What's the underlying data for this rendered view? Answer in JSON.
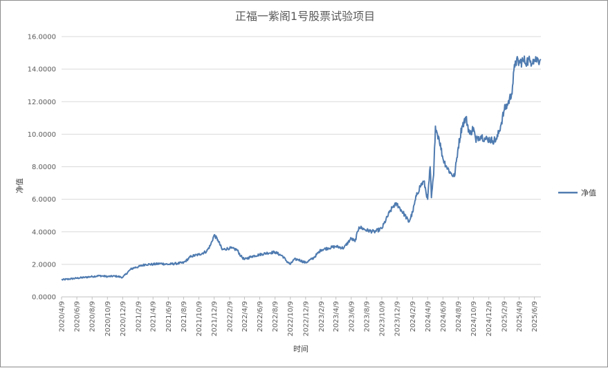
{
  "chart_data": {
    "type": "line",
    "title": "正福一紫阁1号股票试验项目",
    "xlabel": "时间",
    "ylabel": "净值",
    "ylim": [
      0,
      16
    ],
    "yticks": [
      "0.0000",
      "2.0000",
      "4.0000",
      "6.0000",
      "8.0000",
      "10.0000",
      "12.0000",
      "14.0000",
      "16.0000"
    ],
    "xticks": [
      "2020/4/9",
      "2020/6/9",
      "2020/8/9",
      "2020/10/9",
      "2020/12/9",
      "2021/2/9",
      "2021/4/9",
      "2021/6/9",
      "2021/8/9",
      "2021/10/9",
      "2021/12/9",
      "2022/2/9",
      "2022/4/9",
      "2022/6/9",
      "2022/8/9",
      "2022/10/9",
      "2022/12/9",
      "2023/2/9",
      "2023/4/9",
      "2023/6/9",
      "2023/8/9",
      "2023/10/9",
      "2023/12/9",
      "2024/2/9",
      "2024/4/9",
      "2024/6/9",
      "2024/8/9",
      "2024/10/9",
      "2024/12/9",
      "2025/2/9",
      "2025/4/9",
      "2025/6/9"
    ],
    "grid": true,
    "legend_position": "right",
    "series": [
      {
        "name": "净值",
        "color": "#4f7bb0",
        "x": [
          "2020-04-09",
          "2020-05-10",
          "2020-06-09",
          "2020-07-10",
          "2020-08-09",
          "2020-09-09",
          "2020-10-09",
          "2020-11-09",
          "2020-12-09",
          "2021-01-10",
          "2021-01-25",
          "2021-02-09",
          "2021-03-10",
          "2021-04-09",
          "2021-05-10",
          "2021-06-09",
          "2021-07-10",
          "2021-08-09",
          "2021-09-09",
          "2021-10-09",
          "2021-11-09",
          "2021-11-25",
          "2021-12-09",
          "2021-12-24",
          "2022-01-10",
          "2022-02-09",
          "2022-03-10",
          "2022-03-26",
          "2022-04-09",
          "2022-05-10",
          "2022-06-09",
          "2022-07-10",
          "2022-08-09",
          "2022-09-09",
          "2022-09-24",
          "2022-10-09",
          "2022-10-24",
          "2022-11-09",
          "2022-12-09",
          "2023-01-10",
          "2023-02-09",
          "2023-03-10",
          "2023-04-09",
          "2023-05-10",
          "2023-06-09",
          "2023-06-24",
          "2023-07-10",
          "2023-08-09",
          "2023-09-09",
          "2023-10-09",
          "2023-11-09",
          "2023-11-25",
          "2023-12-09",
          "2024-01-10",
          "2024-01-25",
          "2024-02-09",
          "2024-02-24",
          "2024-03-10",
          "2024-03-25",
          "2024-04-09",
          "2024-04-19",
          "2024-04-24",
          "2024-05-03",
          "2024-05-10",
          "2024-05-18",
          "2024-05-24",
          "2024-06-09",
          "2024-06-24",
          "2024-07-10",
          "2024-07-25",
          "2024-08-09",
          "2024-08-24",
          "2024-09-09",
          "2024-09-24",
          "2024-10-09",
          "2024-10-19",
          "2024-10-24",
          "2024-11-09",
          "2024-11-24",
          "2024-12-09",
          "2024-12-24",
          "2025-01-10",
          "2025-01-25",
          "2025-02-09",
          "2025-02-24",
          "2025-03-10",
          "2025-03-25",
          "2025-04-09",
          "2025-04-24",
          "2025-05-10",
          "2025-05-25",
          "2025-06-04",
          "2025-06-09",
          "2025-06-16",
          "2025-06-24",
          "2025-07-01",
          "2025-07-05"
        ],
        "values": [
          1.05,
          1.1,
          1.15,
          1.2,
          1.25,
          1.3,
          1.25,
          1.28,
          1.2,
          1.7,
          1.8,
          1.85,
          2.0,
          2.0,
          2.05,
          2.0,
          2.05,
          2.1,
          2.5,
          2.6,
          2.8,
          3.2,
          3.8,
          3.5,
          2.9,
          3.0,
          2.9,
          2.5,
          2.3,
          2.5,
          2.6,
          2.7,
          2.75,
          2.5,
          2.2,
          2.0,
          2.3,
          2.3,
          2.1,
          2.4,
          2.9,
          3.0,
          3.1,
          3.0,
          3.6,
          3.4,
          4.3,
          4.1,
          4.0,
          4.2,
          5.2,
          5.6,
          5.7,
          5.0,
          4.6,
          5.2,
          6.2,
          6.8,
          7.1,
          6.0,
          8.0,
          6.1,
          7.5,
          10.5,
          10.0,
          9.8,
          8.5,
          8.0,
          7.6,
          7.4,
          9.2,
          10.5,
          11.0,
          10.0,
          10.4,
          9.5,
          9.8,
          9.9,
          9.7,
          9.7,
          9.6,
          9.7,
          10.5,
          11.5,
          11.9,
          12.5,
          14.5,
          14.4,
          14.5,
          14.5,
          14.5,
          14.6,
          14.55,
          14.6,
          14.6,
          14.55,
          14.6
        ]
      }
    ]
  }
}
